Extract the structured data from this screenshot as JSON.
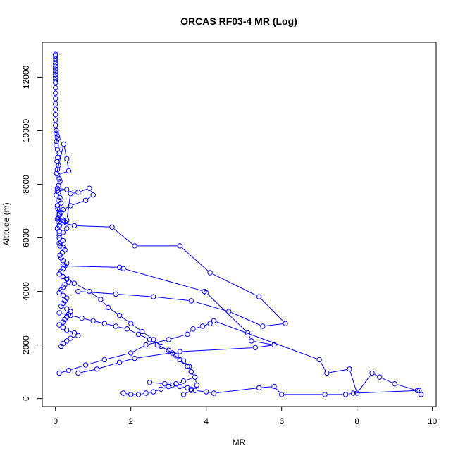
{
  "chart_data": {
    "type": "scatter",
    "title": "ORCAS RF03-4 MR (Log)",
    "xlabel": "MR",
    "ylabel": "Altitude (m)",
    "xlim": [
      -0.35,
      10.1
    ],
    "ylim": [
      -300,
      13300
    ],
    "xticks": [
      0,
      2,
      4,
      6,
      8,
      10
    ],
    "yticks": [
      0,
      2000,
      4000,
      6000,
      8000,
      10000,
      12000
    ],
    "grid": false,
    "legend": "none",
    "color": "#0000ff",
    "series": [
      {
        "style": "points-connected",
        "x": [
          0.0,
          0.0,
          0.0,
          0.0,
          0.0,
          0.0,
          0.0,
          0.0,
          0.0,
          0.0,
          0.0,
          0.0,
          0.0,
          0.0,
          0.0,
          0.0,
          0.0,
          0.0,
          0.0,
          0.0,
          0.02,
          0.02,
          0.05,
          0.06,
          0.03,
          0.02,
          0.05,
          0.1,
          0.06,
          0.04,
          0.08,
          0.05,
          0.03,
          0.22,
          0.3,
          0.35,
          0.06,
          0.1,
          0.12,
          0.08,
          0.05,
          0.3,
          0.05,
          0.08,
          0.02,
          0.12,
          0.08,
          0.15,
          0.05,
          0.06,
          0.1,
          0.15,
          0.1,
          0.08,
          0.05,
          0.2,
          0.15,
          0.1,
          0.05,
          0.1,
          0.2,
          0.3,
          0.4,
          0.6,
          0.9,
          1.0,
          0.8,
          0.4,
          0.2,
          0.1,
          0.15,
          0.25,
          0.3,
          0.2,
          0.1,
          0.1,
          0.2,
          0.15,
          0.1,
          0.12,
          0.2,
          0.25,
          0.18,
          0.12,
          0.15,
          0.2,
          0.3,
          0.25,
          0.2,
          0.15,
          0.1,
          0.2,
          0.3,
          0.35,
          0.25,
          0.2,
          0.15,
          0.1,
          0.2,
          0.3,
          0.25,
          0.2,
          0.15,
          0.3,
          0.4,
          0.35,
          0.3,
          0.25,
          0.2,
          0.1,
          0.2,
          0.3,
          0.5,
          0.6,
          0.4,
          0.3,
          0.2,
          0.15
        ],
        "y": [
          12850,
          12800,
          12700,
          12600,
          12500,
          12400,
          12300,
          12200,
          12100,
          12000,
          11900,
          11800,
          11600,
          11400,
          11200,
          11000,
          10800,
          10600,
          10400,
          10200,
          10000,
          9900,
          9800,
          9700,
          9600,
          9450,
          9300,
          9150,
          9000,
          8850,
          8700,
          8550,
          8400,
          9500,
          8950,
          8500,
          8350,
          8200,
          8100,
          7950,
          7850,
          7800,
          7750,
          7700,
          7600,
          7500,
          7400,
          7300,
          7200,
          7100,
          7000,
          6950,
          6850,
          6750,
          6700,
          6650,
          6550,
          6450,
          6350,
          6250,
          6550,
          6650,
          7650,
          7700,
          7850,
          7600,
          7400,
          7200,
          7050,
          6900,
          6750,
          6600,
          6350,
          6200,
          6100,
          6000,
          5900,
          5850,
          5800,
          5700,
          5650,
          5550,
          5450,
          5350,
          5250,
          5150,
          5050,
          4950,
          4850,
          4750,
          4650,
          4550,
          4450,
          4350,
          4250,
          4150,
          4050,
          3950,
          3850,
          3750,
          3650,
          3550,
          3450,
          3350,
          3250,
          3150,
          3050,
          2950,
          2850,
          2750,
          2650,
          2550,
          2450,
          2350,
          2250,
          2150,
          2050,
          1950
        ]
      },
      {
        "style": "points-connected",
        "x": [
          0.08,
          0.5,
          1.5,
          2.1,
          3.3,
          4.1,
          5.4,
          6.1,
          5.5,
          4.6,
          3.6,
          2.6,
          1.6,
          0.6
        ],
        "y": [
          6600,
          6450,
          6400,
          5700,
          5700,
          4700,
          3800,
          2800,
          2700,
          3250,
          3650,
          3800,
          3900,
          4000
        ]
      },
      {
        "style": "points-connected",
        "x": [
          0.2,
          1.7,
          1.8,
          3.95,
          4.0,
          5.1,
          5.2,
          5.8,
          5.3,
          3.3,
          2.1,
          1.7,
          1.1,
          0.6
        ],
        "y": [
          4950,
          4900,
          4850,
          4000,
          3950,
          2450,
          2150,
          2000,
          1900,
          1750,
          1500,
          1350,
          1100,
          950
        ]
      },
      {
        "style": "points-connected",
        "x": [
          0.1,
          0.35,
          0.8,
          1.3,
          2.0,
          2.4,
          3.0,
          3.5,
          3.65,
          3.9,
          4.1,
          4.2,
          7.0,
          7.2,
          7.8,
          8.0,
          8.4,
          8.6,
          9.0,
          9.6,
          9.7,
          9.65,
          7.9,
          7.7,
          7.15,
          6.0,
          5.8,
          5.4,
          4.2,
          4.0,
          3.7,
          3.6,
          3.5,
          3.3,
          3.1,
          2.9,
          2.5
        ],
        "y": [
          950,
          1050,
          1250,
          1450,
          1700,
          2000,
          2200,
          2400,
          2600,
          2700,
          2800,
          2900,
          1450,
          950,
          1100,
          200,
          950,
          800,
          550,
          300,
          150,
          300,
          200,
          150,
          150,
          150,
          450,
          400,
          200,
          250,
          300,
          350,
          400,
          450,
          500,
          550,
          600
        ]
      },
      {
        "style": "points-connected",
        "x": [
          0.1,
          0.4,
          0.7,
          1.0,
          1.3,
          1.6,
          1.9,
          2.2,
          2.5,
          2.7,
          3.0,
          3.2,
          3.4,
          3.55,
          3.6,
          3.7,
          3.4,
          3.2,
          3.0,
          2.8,
          2.6,
          2.4,
          2.2,
          2.0,
          1.8
        ],
        "y": [
          3200,
          3100,
          3000,
          2900,
          2800,
          2700,
          2600,
          2400,
          2200,
          2000,
          1800,
          1600,
          1400,
          1200,
          1000,
          800,
          650,
          550,
          450,
          350,
          250,
          200,
          150,
          150,
          200
        ]
      },
      {
        "style": "points-connected",
        "x": [
          0.3,
          0.5,
          0.9,
          1.2,
          1.4,
          1.7,
          2.0,
          2.3,
          2.6,
          2.8,
          3.1,
          3.3,
          3.5,
          3.6,
          3.7,
          3.75,
          3.6,
          3.4
        ],
        "y": [
          4500,
          4300,
          4000,
          3700,
          3400,
          3100,
          2800,
          2500,
          2200,
          1950,
          1700,
          1450,
          1200,
          1000,
          800,
          500,
          300,
          150
        ]
      }
    ]
  }
}
